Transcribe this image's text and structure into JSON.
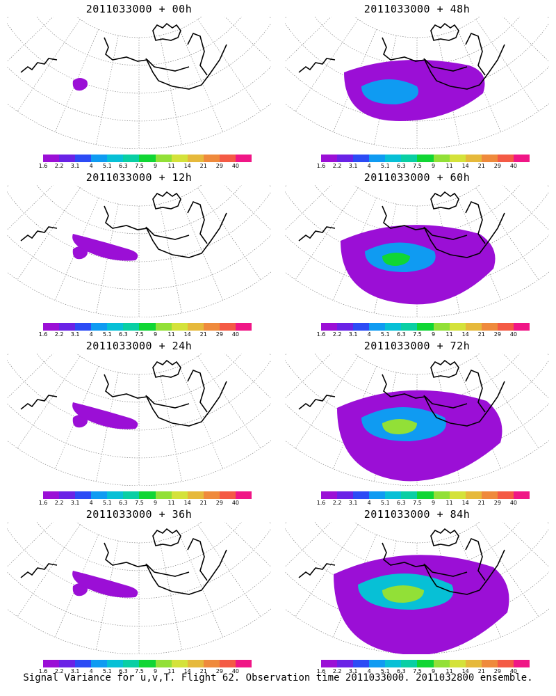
{
  "panels": [
    {
      "title": "2011033000 + 00h",
      "intensity": 0
    },
    {
      "title": "2011033000 + 48h",
      "intensity": 2
    },
    {
      "title": "2011033000 + 12h",
      "intensity": 1
    },
    {
      "title": "2011033000 + 60h",
      "intensity": 3
    },
    {
      "title": "2011033000 + 24h",
      "intensity": 1
    },
    {
      "title": "2011033000 + 72h",
      "intensity": 4
    },
    {
      "title": "2011033000 + 36h",
      "intensity": 1
    },
    {
      "title": "2011033000 + 84h",
      "intensity": 5
    }
  ],
  "colorbar": {
    "labels": [
      "1.6",
      "2.2",
      "3.1",
      "4",
      "5.1",
      "6.3",
      "7.5",
      "9",
      "11",
      "14",
      "21",
      "29",
      "40"
    ],
    "colors": [
      "#9b0fd6",
      "#6a22e6",
      "#2c4bf5",
      "#0f9bf2",
      "#07c0d6",
      "#09cfa4",
      "#10d634",
      "#92e037",
      "#d4e23a",
      "#e6b93b",
      "#ef8a3c",
      "#f45a45",
      "#f01686"
    ]
  },
  "footer": "Signal Variance for u,v,T. Flight 62. Observation time 2011033000. 2011032800 ensemble."
}
